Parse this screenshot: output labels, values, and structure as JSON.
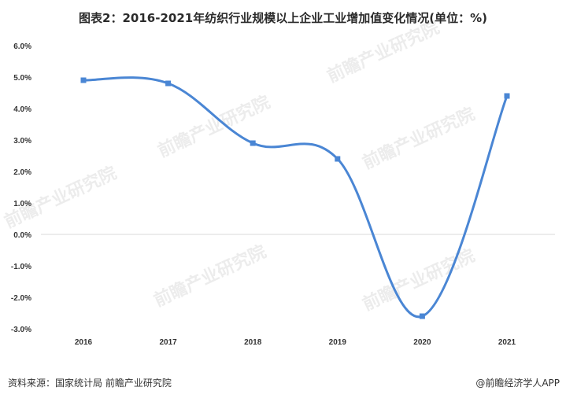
{
  "page": {
    "title": "图表2：2016-2021年纺织行业规模以上企业工业增加值变化情况(单位：%)",
    "source": "资料来源：国家统计局 前瞻产业研究院",
    "credit": "@前瞻经济学人APP",
    "watermark": "前瞻产业研究院"
  },
  "colors": {
    "line": "#4a86d4",
    "axis": "#d9d9d9"
  },
  "chart_data": {
    "type": "line",
    "title": "图表2：2016-2021年纺织行业规模以上企业工业增加值变化情况(单位：%)",
    "x": [
      "2016",
      "2017",
      "2018",
      "2019",
      "2020",
      "2021"
    ],
    "series": [
      {
        "values": [
          4.9,
          4.8,
          2.9,
          2.4,
          -2.6,
          4.4
        ]
      }
    ],
    "ylim": [
      -3.0,
      6.0
    ],
    "yticks": [
      "6.0%",
      "5.0%",
      "4.0%",
      "3.0%",
      "2.0%",
      "1.0%",
      "0.0%",
      "-1.0%",
      "-2.0%",
      "-3.0%"
    ],
    "smooth": true,
    "markers": "square",
    "grid": false,
    "legend": "none"
  }
}
